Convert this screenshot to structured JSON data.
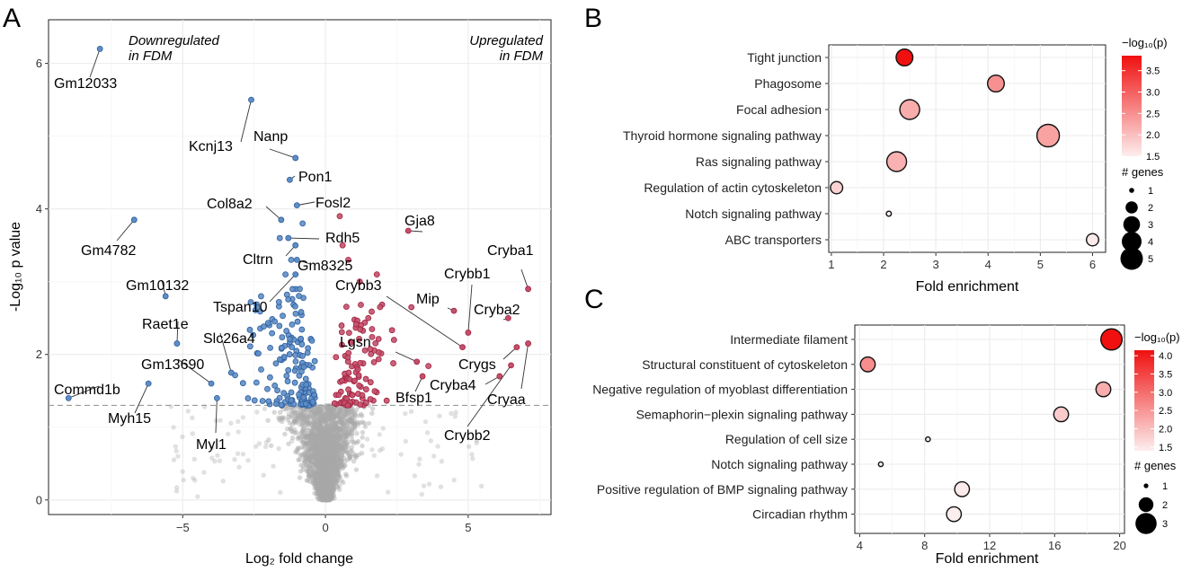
{
  "panels": {
    "a": "A",
    "b": "B",
    "c": "C"
  },
  "chart_data": [
    {
      "type": "scatter",
      "id": "volcano",
      "title": "",
      "xlabel": "Log₂ fold change",
      "ylabel": "-Log₁₀ p value",
      "xlim": [
        -9.7,
        7.9
      ],
      "ylim": [
        -0.2,
        6.6
      ],
      "xticks": [
        -5,
        0,
        5
      ],
      "yticks": [
        0,
        2,
        4,
        6
      ],
      "significance_threshold": 1.3,
      "corner_labels": {
        "down": [
          "Downregulated",
          "in FDM"
        ],
        "up": [
          "Upregulated",
          "in FDM"
        ]
      },
      "colors": {
        "down": "#2b5d9c",
        "up": "#a3213f",
        "ns": "#a8a8a8",
        "threshold": "#999999"
      },
      "labeled_points": [
        {
          "gene": "Gm12033",
          "x": -7.9,
          "y": 6.2,
          "dir": "down"
        },
        {
          "gene": "Kcnj13",
          "x": -2.6,
          "y": 5.5,
          "dir": "down"
        },
        {
          "gene": "Nanp",
          "x": -1.05,
          "y": 4.7,
          "dir": "down"
        },
        {
          "gene": "Pon1",
          "x": -1.25,
          "y": 4.4,
          "dir": "down"
        },
        {
          "gene": "Fosl2",
          "x": -1.0,
          "y": 4.05,
          "dir": "down"
        },
        {
          "gene": "Col8a2",
          "x": -1.55,
          "y": 3.85,
          "dir": "down"
        },
        {
          "gene": "Gm4782",
          "x": -6.7,
          "y": 3.85,
          "dir": "down"
        },
        {
          "gene": "Rdh5",
          "x": -1.3,
          "y": 3.6,
          "dir": "down"
        },
        {
          "gene": "Cltrn",
          "x": -1.05,
          "y": 3.5,
          "dir": "down"
        },
        {
          "gene": "Gm8325",
          "x": -1.0,
          "y": 3.3,
          "dir": "down"
        },
        {
          "gene": "Tspan10",
          "x": -1.05,
          "y": 3.1,
          "dir": "down"
        },
        {
          "gene": "Gm10132",
          "x": -5.6,
          "y": 2.8,
          "dir": "down"
        },
        {
          "gene": "Raet1e",
          "x": -5.2,
          "y": 2.15,
          "dir": "down"
        },
        {
          "gene": "Slc26a4",
          "x": -3.3,
          "y": 1.75,
          "dir": "down"
        },
        {
          "gene": "Gm13690",
          "x": -4.0,
          "y": 1.6,
          "dir": "down"
        },
        {
          "gene": "Commd1b",
          "x": -9.0,
          "y": 1.4,
          "dir": "down"
        },
        {
          "gene": "Myh15",
          "x": -6.2,
          "y": 1.6,
          "dir": "down"
        },
        {
          "gene": "Myl1",
          "x": -3.8,
          "y": 1.4,
          "dir": "down"
        },
        {
          "gene": "Gja8",
          "x": 2.9,
          "y": 3.7,
          "dir": "up"
        },
        {
          "gene": "Cryba1",
          "x": 7.1,
          "y": 2.9,
          "dir": "up"
        },
        {
          "gene": "Crybb1",
          "x": 5.0,
          "y": 2.3,
          "dir": "up"
        },
        {
          "gene": "Mip",
          "x": 4.5,
          "y": 2.6,
          "dir": "up"
        },
        {
          "gene": "Crybb3",
          "x": 4.8,
          "y": 2.1,
          "dir": "up"
        },
        {
          "gene": "Cryba2",
          "x": 6.4,
          "y": 2.5,
          "dir": "up"
        },
        {
          "gene": "Lgsn",
          "x": 3.2,
          "y": 1.9,
          "dir": "up"
        },
        {
          "gene": "Crygs",
          "x": 6.7,
          "y": 2.1,
          "dir": "up"
        },
        {
          "gene": "Cryba4",
          "x": 6.1,
          "y": 1.7,
          "dir": "up"
        },
        {
          "gene": "Cryaa",
          "x": 7.1,
          "y": 2.15,
          "dir": "up"
        },
        {
          "gene": "Bfsp1",
          "x": 3.4,
          "y": 1.7,
          "dir": "up"
        },
        {
          "gene": "Crybb2",
          "x": 6.5,
          "y": 1.85,
          "dir": "up"
        }
      ],
      "background_points": "~10000 non-significant genes (p > 0.05) concentrated near log2FC 0"
    },
    {
      "type": "scatter",
      "id": "kegg-enrichment",
      "xlabel": "Fold enrichment",
      "xlim": [
        0.95,
        6.25
      ],
      "xticks": [
        1,
        2,
        3,
        4,
        5,
        6
      ],
      "terms": [
        {
          "term": "Tight junction",
          "fold": 2.4,
          "neglogp": 3.85,
          "genes": 3
        },
        {
          "term": "Phagosome",
          "fold": 4.15,
          "neglogp": 2.5,
          "genes": 3
        },
        {
          "term": "Focal adhesion",
          "fold": 2.5,
          "neglogp": 2.2,
          "genes": 4
        },
        {
          "term": "Thyroid hormone signaling pathway",
          "fold": 5.15,
          "neglogp": 2.3,
          "genes": 5
        },
        {
          "term": "Ras signaling pathway",
          "fold": 2.25,
          "neglogp": 2.15,
          "genes": 4
        },
        {
          "term": "Regulation of actin cytoskeleton",
          "fold": 1.1,
          "neglogp": 1.8,
          "genes": 2
        },
        {
          "term": "Notch signaling pathway",
          "fold": 2.1,
          "neglogp": 1.5,
          "genes": 1
        },
        {
          "term": "ABC transporters",
          "fold": 6.0,
          "neglogp": 1.55,
          "genes": 2
        }
      ],
      "color_legend": {
        "title": "−log₁₀(p)",
        "ticks": [
          1.5,
          2.0,
          2.5,
          3.0,
          3.5
        ],
        "range": [
          1.5,
          3.85
        ]
      },
      "size_legend": {
        "title": "# genes",
        "ticks": [
          1,
          2,
          3,
          4,
          5
        ]
      }
    },
    {
      "type": "scatter",
      "id": "go-enrichment",
      "xlabel": "Fold enrichment",
      "xlim": [
        3.7,
        20.3
      ],
      "xticks": [
        4,
        8,
        12,
        16,
        20
      ],
      "terms": [
        {
          "term": "Intermediate filament",
          "fold": 19.5,
          "neglogp": 4.15,
          "genes": 3
        },
        {
          "term": "Structural constituent of cytoskeleton",
          "fold": 4.5,
          "neglogp": 2.6,
          "genes": 2
        },
        {
          "term": "Negative regulation of myoblast differentiation",
          "fold": 19.0,
          "neglogp": 2.2,
          "genes": 2
        },
        {
          "term": "Semaphorin−plexin signaling pathway",
          "fold": 16.4,
          "neglogp": 1.85,
          "genes": 2
        },
        {
          "term": "Regulation of cell size",
          "fold": 8.2,
          "neglogp": 1.5,
          "genes": 1
        },
        {
          "term": "Notch signaling pathway",
          "fold": 5.3,
          "neglogp": 1.45,
          "genes": 1
        },
        {
          "term": "Positive regulation of BMP signaling pathway",
          "fold": 10.3,
          "neglogp": 1.45,
          "genes": 2
        },
        {
          "term": "Circadian rhythm",
          "fold": 9.8,
          "neglogp": 1.4,
          "genes": 2
        }
      ],
      "color_legend": {
        "title": "−log₁₀(p)",
        "ticks": [
          1.5,
          2.0,
          2.5,
          3.0,
          3.5,
          4.0
        ],
        "range": [
          1.4,
          4.15
        ]
      },
      "size_legend": {
        "title": "# genes",
        "ticks": [
          1,
          2,
          3
        ]
      }
    }
  ]
}
